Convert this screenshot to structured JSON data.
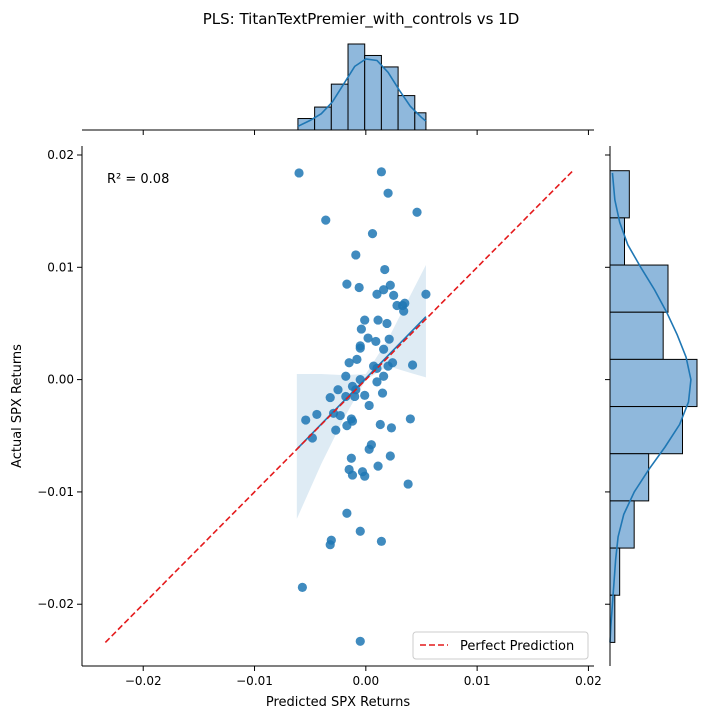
{
  "chart_data": {
    "type": "scatter",
    "title": "PLS: TitanTextPremier_with_controls vs 1D",
    "xlabel": "Predicted SPX Returns",
    "ylabel": "Actual SPX Returns",
    "xlim": [
      -0.0255,
      0.0205
    ],
    "ylim": [
      -0.0255,
      0.0208
    ],
    "x_ticks": [
      -0.02,
      -0.01,
      0.0,
      0.01,
      0.02
    ],
    "x_tick_labels": [
      "−0.02",
      "−0.01",
      "0.00",
      "0.01",
      "0.02"
    ],
    "y_ticks": [
      -0.02,
      -0.01,
      0.0,
      0.01,
      0.02
    ],
    "y_tick_labels": [
      "−0.02",
      "−0.01",
      "0.00",
      "0.01",
      "0.02"
    ],
    "grid": false,
    "annotation": "R² = 0.08",
    "legend": {
      "placement": "lower-right",
      "entries": [
        "Perfect Prediction"
      ]
    },
    "colors": {
      "points": "#1f77b4",
      "regression": "#1f77b4",
      "perfect_line": "#e41a1c",
      "hist_fill": "#8fb8dc"
    },
    "perfect_line": {
      "x": [
        -0.0234,
        0.0187
      ],
      "y": [
        -0.0234,
        0.0187
      ]
    },
    "regression_line": {
      "x": [
        -0.0062,
        0.0054
      ],
      "y": [
        -0.0062,
        0.0056
      ]
    },
    "confidence_band": {
      "x": [
        -0.0062,
        -0.004,
        -0.002,
        0.0,
        0.002,
        0.004,
        0.0054
      ],
      "lower": [
        -0.0124,
        -0.0075,
        -0.0035,
        0.0,
        0.0012,
        0.0006,
        0.0002
      ],
      "upper": [
        0.0005,
        0.0005,
        0.0004,
        0.0005,
        0.0036,
        0.0075,
        0.0102
      ]
    },
    "points": [
      {
        "x": -0.006,
        "y": 0.0184
      },
      {
        "x": 0.0014,
        "y": 0.0185
      },
      {
        "x": 0.002,
        "y": 0.0166
      },
      {
        "x": -0.0036,
        "y": 0.0142
      },
      {
        "x": 0.0046,
        "y": 0.0149
      },
      {
        "x": 0.0006,
        "y": 0.013
      },
      {
        "x": -0.0009,
        "y": 0.0111
      },
      {
        "x": 0.0017,
        "y": 0.0098
      },
      {
        "x": -0.0017,
        "y": 0.0085
      },
      {
        "x": -0.0006,
        "y": 0.0082
      },
      {
        "x": 0.0016,
        "y": 0.008
      },
      {
        "x": 0.0022,
        "y": 0.0084
      },
      {
        "x": 0.001,
        "y": 0.0076
      },
      {
        "x": 0.0025,
        "y": 0.0075
      },
      {
        "x": 0.0054,
        "y": 0.0076
      },
      {
        "x": 0.0028,
        "y": 0.0066
      },
      {
        "x": 0.0033,
        "y": 0.0066
      },
      {
        "x": 0.0035,
        "y": 0.0068
      },
      {
        "x": 0.0034,
        "y": 0.0061
      },
      {
        "x": -0.0001,
        "y": 0.0053
      },
      {
        "x": 0.0011,
        "y": 0.0053
      },
      {
        "x": 0.0019,
        "y": 0.005
      },
      {
        "x": -0.0004,
        "y": 0.0045
      },
      {
        "x": 0.0002,
        "y": 0.0037
      },
      {
        "x": 0.0009,
        "y": 0.0034
      },
      {
        "x": 0.0021,
        "y": 0.0036
      },
      {
        "x": -0.0005,
        "y": 0.0028
      },
      {
        "x": -0.0005,
        "y": 0.003
      },
      {
        "x": 0.0016,
        "y": 0.0027
      },
      {
        "x": -0.0008,
        "y": 0.0018
      },
      {
        "x": -0.0015,
        "y": 0.0015
      },
      {
        "x": 0.0024,
        "y": 0.0015
      },
      {
        "x": 0.0042,
        "y": 0.0013
      },
      {
        "x": 0.0007,
        "y": 0.0012
      },
      {
        "x": 0.001,
        "y": 0.001
      },
      {
        "x": 0.002,
        "y": 0.0012
      },
      {
        "x": -0.0018,
        "y": 0.0003
      },
      {
        "x": -0.0005,
        "y": 0.0
      },
      {
        "x": 0.001,
        "y": -0.0002
      },
      {
        "x": 0.0016,
        "y": 0.0003
      },
      {
        "x": -0.0012,
        "y": -0.0006
      },
      {
        "x": -0.0025,
        "y": -0.0009
      },
      {
        "x": -0.0009,
        "y": -0.0009
      },
      {
        "x": -0.0032,
        "y": -0.0016
      },
      {
        "x": -0.0018,
        "y": -0.0015
      },
      {
        "x": -0.0001,
        "y": -0.0014
      },
      {
        "x": -0.001,
        "y": -0.0015
      },
      {
        "x": 0.0015,
        "y": -0.0012
      },
      {
        "x": 0.0003,
        "y": -0.0023
      },
      {
        "x": -0.0044,
        "y": -0.0031
      },
      {
        "x": -0.0029,
        "y": -0.003
      },
      {
        "x": -0.0023,
        "y": -0.0032
      },
      {
        "x": -0.0054,
        "y": -0.0036
      },
      {
        "x": -0.0013,
        "y": -0.0035
      },
      {
        "x": -0.0012,
        "y": -0.0037
      },
      {
        "x": -0.0017,
        "y": -0.0041
      },
      {
        "x": 0.004,
        "y": -0.0035
      },
      {
        "x": 0.0013,
        "y": -0.004
      },
      {
        "x": -0.0027,
        "y": -0.0045
      },
      {
        "x": 0.0023,
        "y": -0.0043
      },
      {
        "x": -0.0048,
        "y": -0.0052
      },
      {
        "x": 0.0005,
        "y": -0.0058
      },
      {
        "x": 0.0003,
        "y": -0.0062
      },
      {
        "x": 0.0022,
        "y": -0.0068
      },
      {
        "x": -0.0013,
        "y": -0.007
      },
      {
        "x": 0.0011,
        "y": -0.0077
      },
      {
        "x": -0.0015,
        "y": -0.008
      },
      {
        "x": -0.0003,
        "y": -0.0082
      },
      {
        "x": -0.0012,
        "y": -0.0085
      },
      {
        "x": -0.0001,
        "y": -0.0086
      },
      {
        "x": 0.0038,
        "y": -0.0093
      },
      {
        "x": -0.0017,
        "y": -0.0119
      },
      {
        "x": -0.0005,
        "y": -0.0135
      },
      {
        "x": -0.0031,
        "y": -0.0143
      },
      {
        "x": -0.0032,
        "y": -0.0147
      },
      {
        "x": 0.0014,
        "y": -0.0144
      },
      {
        "x": -0.0057,
        "y": -0.0185
      },
      {
        "x": -0.0005,
        "y": -0.0233
      }
    ],
    "x_histogram": {
      "bin_edges": [
        -0.0061,
        -0.0046,
        -0.0031,
        -0.0016,
        -0.0001,
        0.0014,
        0.0029,
        0.0044,
        0.0054
      ],
      "counts": [
        2,
        4,
        8,
        15,
        13,
        11,
        6,
        3
      ]
    },
    "y_histogram": {
      "bin_edges": [
        0.0186,
        0.0144,
        0.0102,
        0.006,
        0.0018,
        -0.0024,
        -0.0066,
        -0.0108,
        -0.015,
        -0.0192,
        -0.0234
      ],
      "counts": [
        4,
        3,
        12,
        11,
        18,
        15,
        8,
        5,
        2,
        1
      ]
    },
    "x_kde": {
      "x": [
        -0.0061,
        -0.005,
        -0.004,
        -0.003,
        -0.002,
        -0.001,
        0.0,
        0.001,
        0.002,
        0.003,
        0.004,
        0.005,
        0.0054
      ],
      "density": [
        0.05,
        0.13,
        0.22,
        0.38,
        0.62,
        0.86,
        0.96,
        0.94,
        0.78,
        0.54,
        0.32,
        0.17,
        0.12
      ]
    },
    "y_kde": {
      "y": [
        0.0184,
        0.016,
        0.014,
        0.012,
        0.01,
        0.008,
        0.006,
        0.004,
        0.002,
        0.0,
        -0.002,
        -0.004,
        -0.006,
        -0.008,
        -0.01,
        -0.012,
        -0.014,
        -0.016,
        -0.018,
        -0.02,
        -0.022,
        -0.0234
      ],
      "density": [
        0.03,
        0.06,
        0.12,
        0.22,
        0.38,
        0.55,
        0.7,
        0.83,
        0.94,
        1.0,
        0.97,
        0.86,
        0.68,
        0.48,
        0.3,
        0.17,
        0.1,
        0.07,
        0.05,
        0.03,
        0.01,
        0.0
      ]
    }
  }
}
